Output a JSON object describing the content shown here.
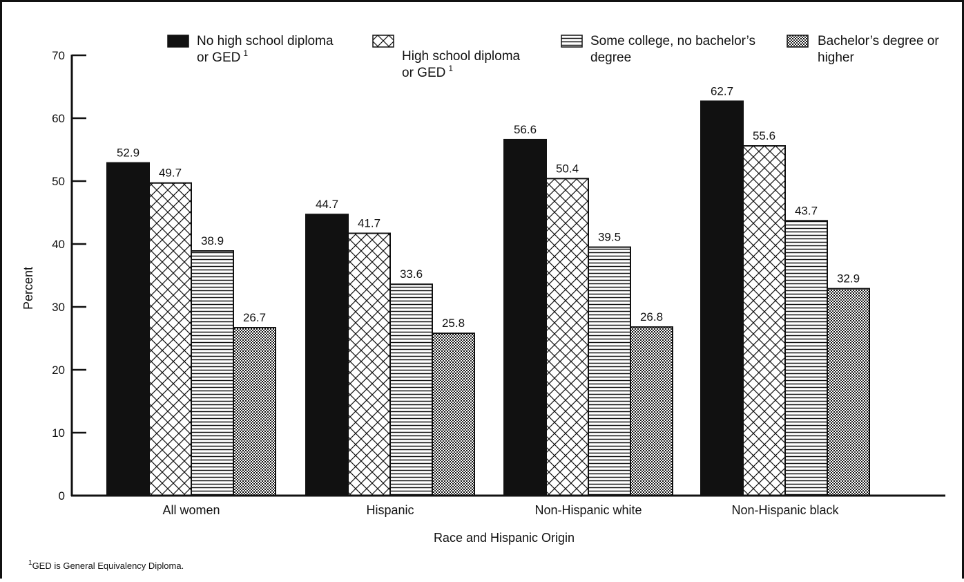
{
  "chart_data": {
    "type": "bar",
    "title": "",
    "xlabel": "Race and Hispanic Origin",
    "ylabel": "Percent",
    "ylim": [
      0,
      70
    ],
    "yticks": [
      0,
      10,
      20,
      30,
      40,
      50,
      60,
      70
    ],
    "categories": [
      "All women",
      "Hispanic",
      "Non-Hispanic white",
      "Non-Hispanic black"
    ],
    "series": [
      {
        "name_lines": [
          "No high school diploma",
          "or GED"
        ],
        "footnote_mark": "1",
        "pattern": "solid",
        "values": [
          52.9,
          44.7,
          56.6,
          62.7
        ]
      },
      {
        "name_lines": [
          "High school diploma",
          "or GED"
        ],
        "footnote_mark": "1",
        "pattern": "crosshatch",
        "values": [
          49.7,
          41.7,
          50.4,
          55.6
        ]
      },
      {
        "name_lines": [
          "Some college, no bachelor’s",
          "degree"
        ],
        "footnote_mark": "",
        "pattern": "horizontal",
        "values": [
          38.9,
          33.6,
          39.5,
          43.7
        ]
      },
      {
        "name_lines": [
          "Bachelor’s degree or",
          "higher"
        ],
        "footnote_mark": "",
        "pattern": "dotted",
        "values": [
          26.7,
          25.8,
          26.8,
          32.9
        ]
      }
    ],
    "grid": false,
    "legend_position": "top"
  },
  "footnote": {
    "mark": "1",
    "text": "GED is General Equivalency Diploma."
  }
}
